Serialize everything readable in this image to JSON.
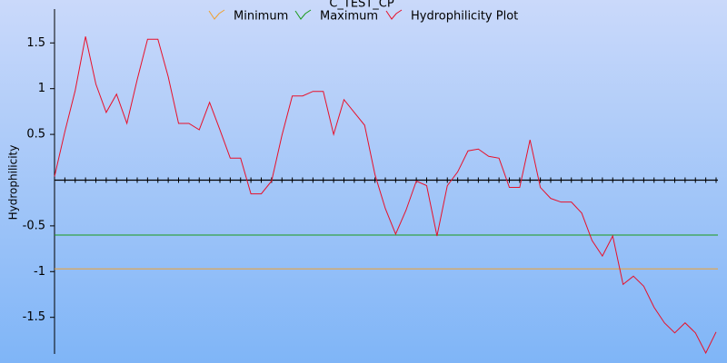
{
  "chart_data": {
    "type": "line",
    "title": "C_TEST_CP",
    "y_label": "Hydrophilicity",
    "ylim": [
      -1.9,
      1.87
    ],
    "yticks": [
      -1.5,
      -1,
      -0.5,
      0.5,
      1,
      1.5
    ],
    "categories": [
      null,
      null,
      null,
      null,
      null,
      null,
      null,
      null,
      null,
      null,
      null,
      null,
      null,
      null,
      null,
      null,
      null,
      null,
      null,
      null,
      null,
      null,
      null,
      null,
      null,
      null,
      null,
      null,
      null,
      null,
      null,
      null,
      null,
      null,
      null,
      null,
      null,
      null,
      null,
      null,
      null,
      null,
      null,
      null,
      null,
      null,
      null,
      null,
      null,
      null,
      null,
      null,
      null,
      null,
      null,
      null,
      null,
      null,
      null,
      null,
      null,
      null,
      null,
      null,
      null
    ],
    "series": [
      {
        "name": "Minimum",
        "color": "#f0a030",
        "value": -0.97
      },
      {
        "name": "Maximum",
        "color": "#1a9a1a",
        "value": -0.6
      },
      {
        "name": "Hydrophilicity Plot",
        "color": "#e8102a",
        "values": [
          0.04,
          0.53,
          0.98,
          1.57,
          1.05,
          0.74,
          0.94,
          0.62,
          1.1,
          1.54,
          1.54,
          1.13,
          0.62,
          0.62,
          0.55,
          0.85,
          0.55,
          0.24,
          0.24,
          -0.15,
          -0.15,
          -0.01,
          0.49,
          0.92,
          0.92,
          0.97,
          0.97,
          0.5,
          0.88,
          0.74,
          0.6,
          0.06,
          -0.31,
          -0.59,
          -0.33,
          -0.01,
          -0.06,
          -0.61,
          -0.06,
          0.09,
          0.32,
          0.34,
          0.26,
          0.24,
          -0.08,
          -0.08,
          0.44,
          -0.08,
          -0.2,
          -0.24,
          -0.24,
          -0.36,
          -0.66,
          -0.83,
          -0.61,
          -1.14,
          -1.05,
          -1.16,
          -1.39,
          -1.56,
          -1.67,
          -1.56,
          -1.67,
          -1.89,
          -1.66
        ]
      }
    ]
  }
}
